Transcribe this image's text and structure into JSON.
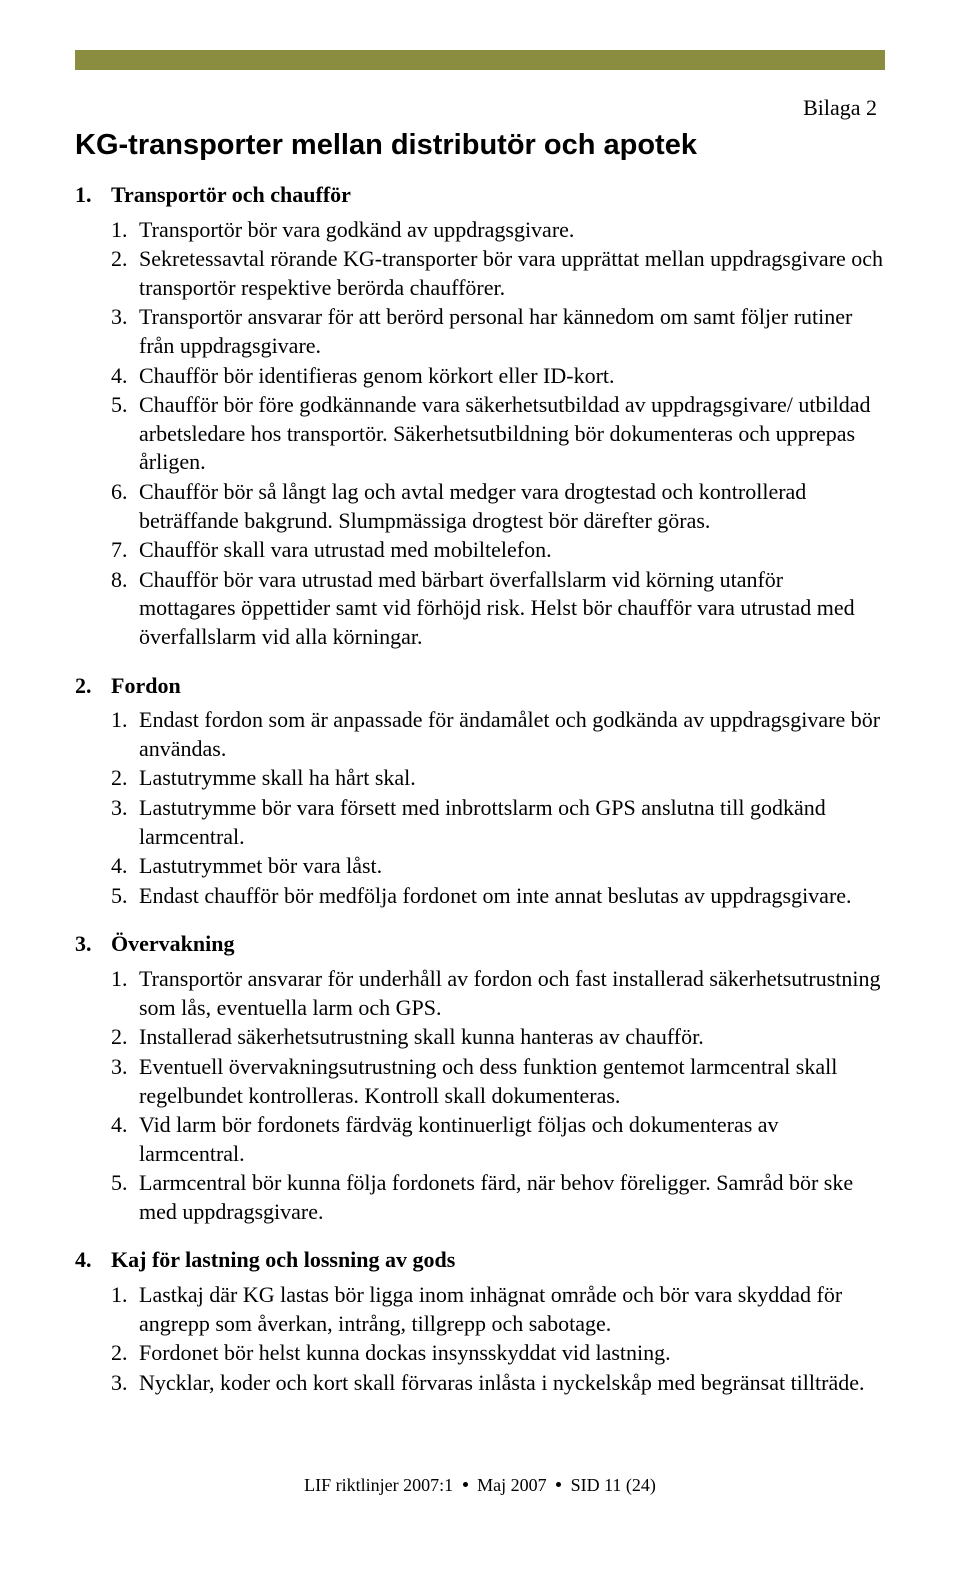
{
  "colors": {
    "header_bar": "#8a8c3f",
    "background": "#ffffff",
    "text": "#000000"
  },
  "bilaga": "Bilaga 2",
  "title": "KG-transporter mellan distributör och apotek",
  "sections": [
    {
      "num": "1.",
      "heading": "Transportör och chaufför",
      "items": [
        {
          "n": "1.",
          "t": "Transportör bör vara godkänd av uppdragsgivare."
        },
        {
          "n": "2.",
          "t": "Sekretessavtal rörande KG-transporter bör vara upprättat mellan uppdragsgivare och transportör respektive berörda chaufförer."
        },
        {
          "n": "3.",
          "t": "Transportör ansvarar för att berörd personal har kännedom om samt följer rutiner från uppdragsgivare."
        },
        {
          "n": "4.",
          "t": "Chaufför bör identifieras genom körkort eller ID-kort."
        },
        {
          "n": "5.",
          "t": "Chaufför bör före godkännande vara säkerhetsutbildad av uppdragsgivare/ utbildad arbetsledare hos transportör. Säkerhetsutbildning bör dokumenteras och upprepas årligen."
        },
        {
          "n": "6.",
          "t": "Chaufför bör så långt lag och avtal medger vara drogtestad och kontrollerad beträffande bakgrund. Slumpmässiga drogtest bör därefter göras."
        },
        {
          "n": "7.",
          "t": "Chaufför skall vara utrustad med mobiltelefon."
        },
        {
          "n": "8.",
          "t": "Chaufför bör vara utrustad med bärbart överfallslarm vid körning utanför mottagares öppettider samt vid förhöjd risk. Helst bör chaufför vara utrustad med överfallslarm vid alla körningar."
        }
      ]
    },
    {
      "num": "2.",
      "heading": "Fordon",
      "items": [
        {
          "n": "1.",
          "t": "Endast fordon som är anpassade för ändamålet och godkända av uppdragsgivare bör användas."
        },
        {
          "n": "2.",
          "t": "Lastutrymme skall ha hårt skal."
        },
        {
          "n": "3.",
          "t": "Lastutrymme bör vara försett med inbrottslarm och GPS anslutna till godkänd larmcentral."
        },
        {
          "n": "4.",
          "t": "Lastutrymmet bör vara låst."
        },
        {
          "n": "5.",
          "t": "Endast chaufför bör medfölja fordonet om inte annat beslutas av uppdragsgivare."
        }
      ]
    },
    {
      "num": "3.",
      "heading": "Övervakning",
      "items": [
        {
          "n": "1.",
          "t": "Transportör ansvarar för underhåll av fordon och fast installerad säkerhetsutrustning som lås, eventuella larm och GPS."
        },
        {
          "n": "2.",
          "t": "Installerad säkerhetsutrustning skall kunna hanteras av chaufför."
        },
        {
          "n": "3.",
          "t": "Eventuell övervakningsutrustning och dess funktion gentemot larmcentral skall regelbundet kontrolleras. Kontroll skall dokumenteras."
        },
        {
          "n": "4.",
          "t": "Vid larm bör fordonets färdväg kontinuerligt följas och dokumenteras av larmcentral."
        },
        {
          "n": "5.",
          "t": "Larmcentral bör kunna följa fordonets färd, när behov föreligger. Samråd bör ske med uppdragsgivare."
        }
      ]
    },
    {
      "num": "4.",
      "heading": "Kaj för lastning och lossning av gods",
      "items": [
        {
          "n": "1.",
          "t": "Lastkaj där KG lastas bör ligga inom inhägnat område och bör vara skyddad för angrepp som åverkan, intrång, tillgrepp och sabotage."
        },
        {
          "n": "2.",
          "t": "Fordonet bör helst kunna dockas insynsskyddat vid lastning."
        },
        {
          "n": "3.",
          "t": "Nycklar, koder och kort skall förvaras inlåsta i nyckelskåp med begränsat tillträde."
        }
      ]
    }
  ],
  "footer": {
    "left": "LIF riktlinjer 2007:1",
    "mid": "Maj 2007",
    "right": "SID 11 (24)"
  }
}
